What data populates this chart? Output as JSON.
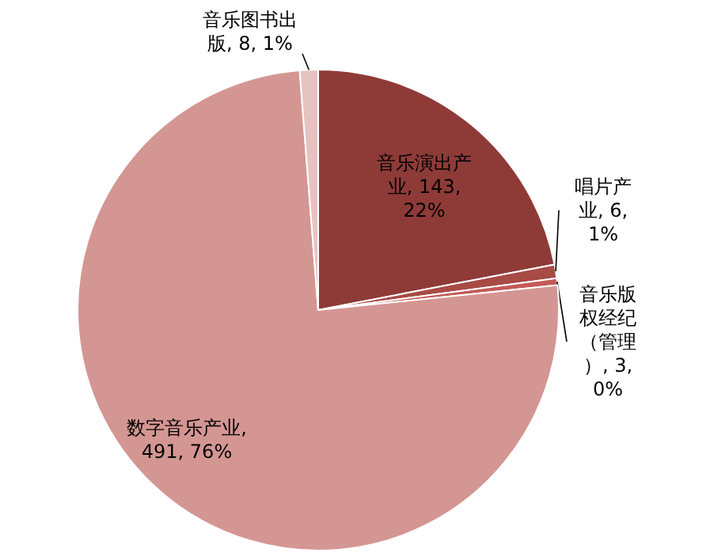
{
  "chart_data": {
    "type": "pie",
    "categories": [
      "音乐演出产业",
      "唱片产业",
      "音乐版权经纪（管理）",
      "数字音乐产业",
      "音乐图书出版"
    ],
    "values": [
      143,
      6,
      3,
      491,
      8
    ],
    "value_labels": [
      ", 143, 22%",
      ", 6, 1%",
      ", 3, 0%",
      ", 491, 76%",
      ", 8, 1%"
    ],
    "colors": [
      "#8e3b38",
      "#a84a46",
      "#c35a58",
      "#d49692",
      "#e6c3c1"
    ]
  }
}
